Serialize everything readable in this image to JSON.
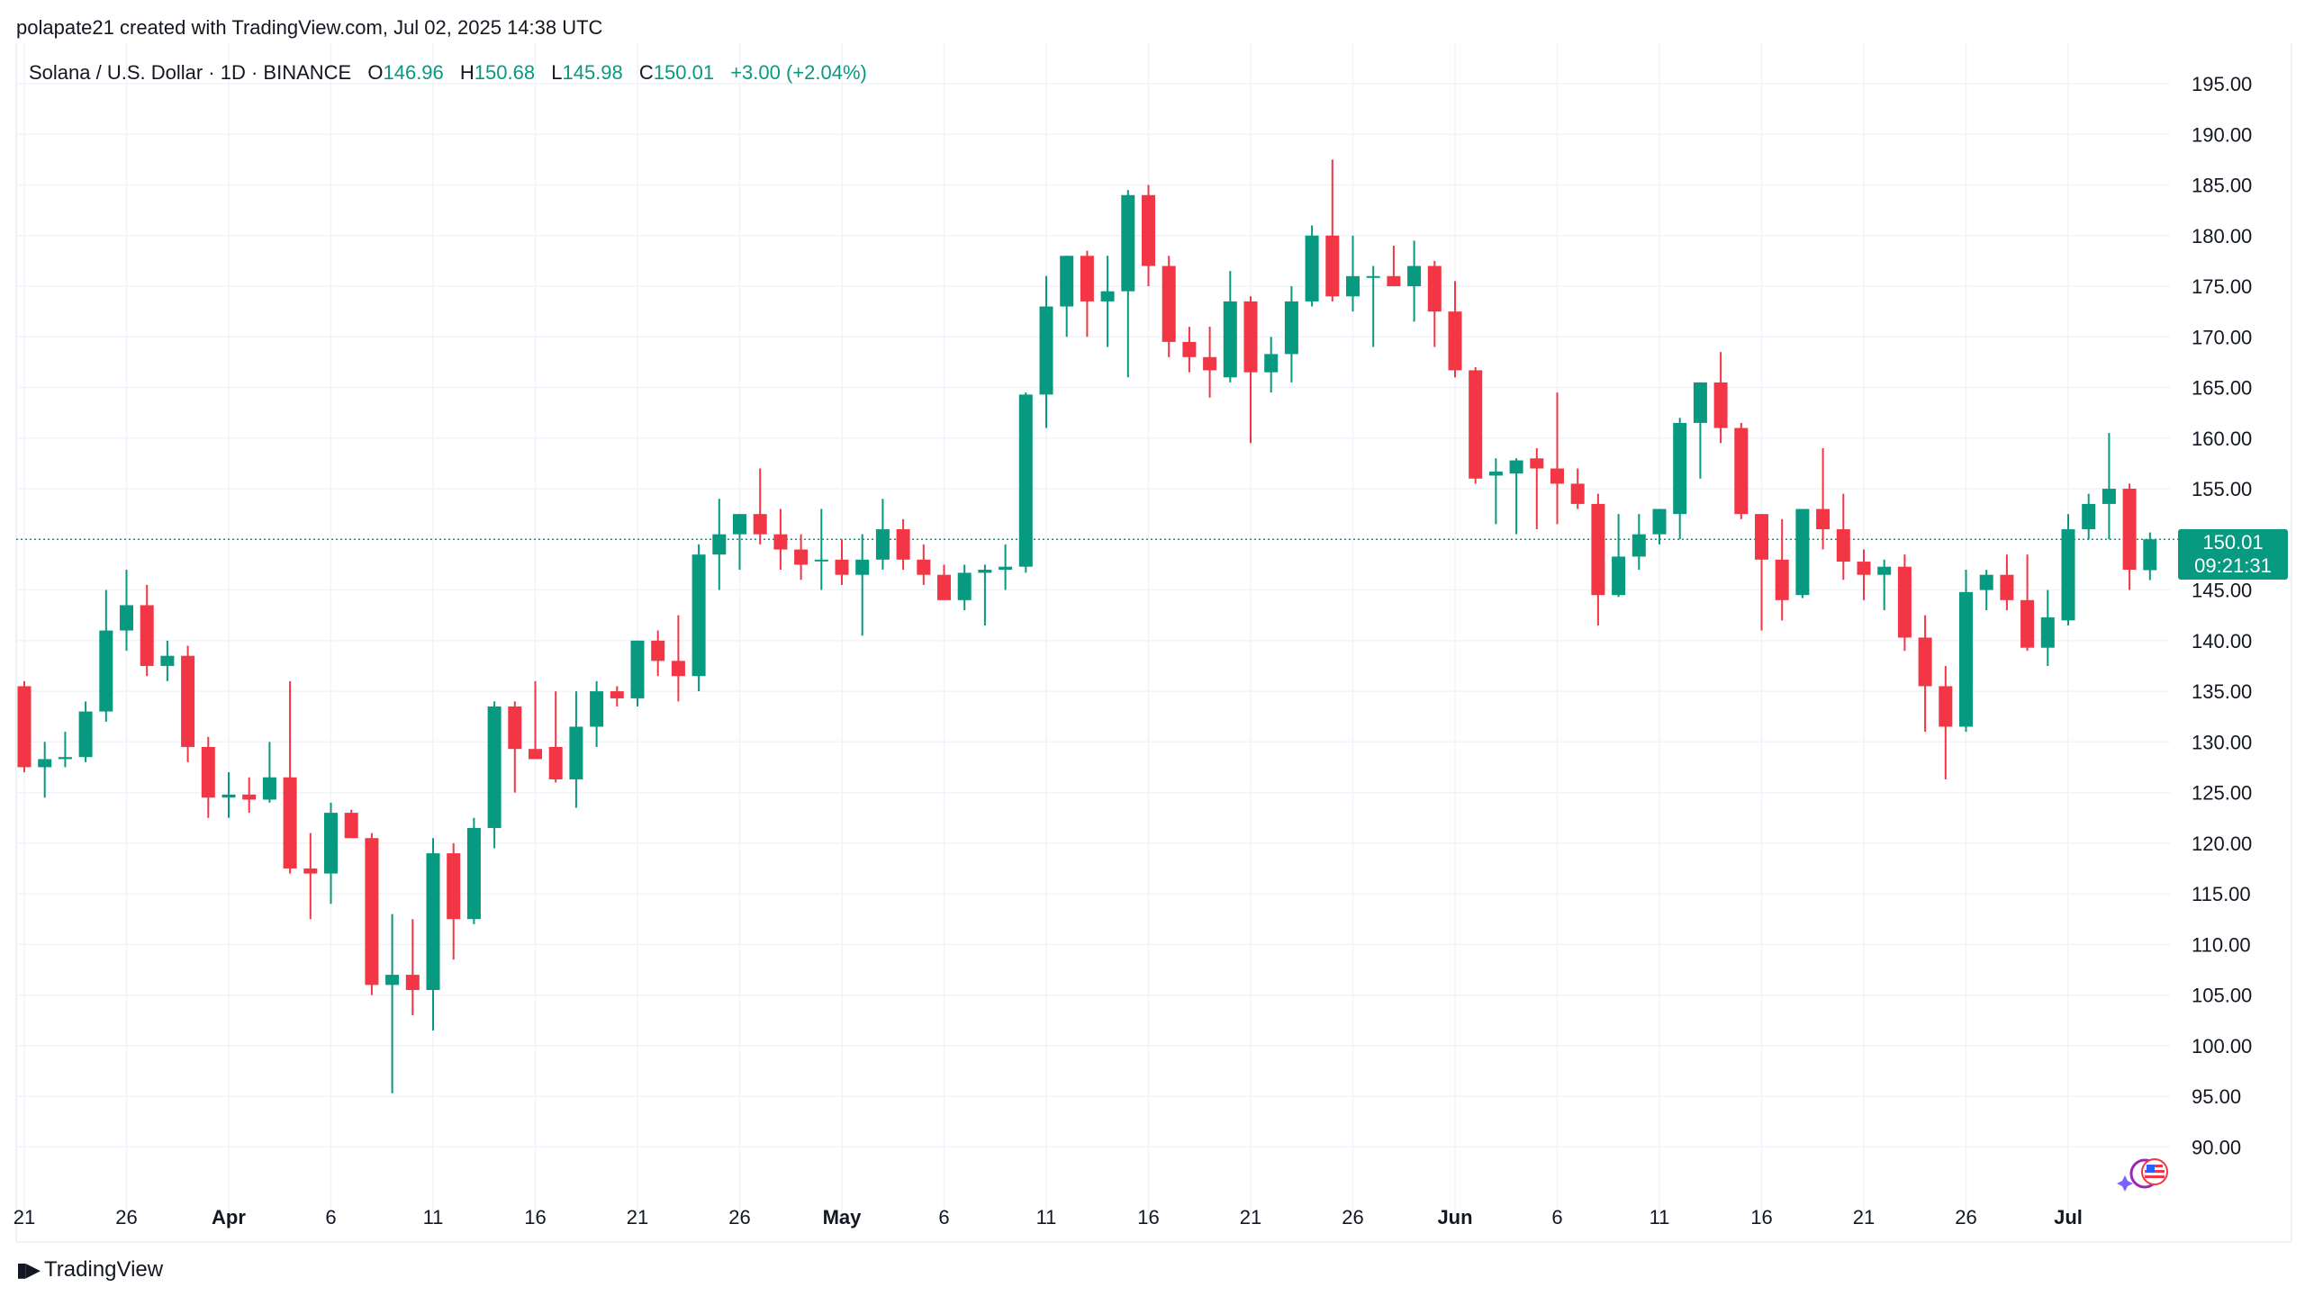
{
  "attribution": "polapate21 created with TradingView.com, Jul 02, 2025 14:38 UTC",
  "legend": {
    "symbol": "Solana / U.S. Dollar · 1D · BINANCE",
    "o_label": "O",
    "o_value": "146.96",
    "h_label": "H",
    "h_value": "150.68",
    "l_label": "L",
    "l_value": "145.98",
    "c_label": "C",
    "c_value": "150.01",
    "change": "+3.00 (+2.04%)"
  },
  "last_price": {
    "value": "150.01",
    "countdown": "09:21:31"
  },
  "logo_text": "TradingView",
  "colors": {
    "up": "#089981",
    "down": "#F23645",
    "grid": "#F0F3FA",
    "text": "#131722",
    "price_line": "#089981"
  },
  "chart_data": {
    "type": "candlestick",
    "title": "Solana / U.S. Dollar · 1D · BINANCE",
    "x_tick_labels": [
      "21",
      "26",
      "Apr",
      "6",
      "11",
      "16",
      "21",
      "26",
      "May",
      "6",
      "11",
      "16",
      "21",
      "26",
      "Jun",
      "6",
      "11",
      "16",
      "21",
      "26",
      "Jul"
    ],
    "x_tick_index": [
      0,
      5,
      10,
      15,
      20,
      25,
      30,
      35,
      40,
      45,
      50,
      55,
      60,
      65,
      70,
      75,
      80,
      85,
      90,
      95,
      100
    ],
    "y_tick_labels": [
      "195.00",
      "190.00",
      "185.00",
      "180.00",
      "175.00",
      "170.00",
      "165.00",
      "160.00",
      "155.00",
      "150.00",
      "145.00",
      "140.00",
      "135.00",
      "130.00",
      "125.00",
      "120.00",
      "115.00",
      "110.00",
      "105.00",
      "100.00",
      "95.00",
      "90.00"
    ],
    "ylim": [
      85.5,
      199
    ],
    "grid": true,
    "start_date": "2025-03-20",
    "candles": [
      {
        "o": 135.5,
        "h": 136,
        "l": 127,
        "c": 127.5
      },
      {
        "o": 127.5,
        "h": 130,
        "l": 124.5,
        "c": 128.3
      },
      {
        "o": 128.3,
        "h": 131,
        "l": 127.5,
        "c": 128.5
      },
      {
        "o": 128.5,
        "h": 134,
        "l": 128,
        "c": 133
      },
      {
        "o": 133,
        "h": 145,
        "l": 132,
        "c": 141
      },
      {
        "o": 141,
        "h": 147,
        "l": 139,
        "c": 143.5
      },
      {
        "o": 143.5,
        "h": 145.5,
        "l": 136.5,
        "c": 137.5
      },
      {
        "o": 137.5,
        "h": 140,
        "l": 136,
        "c": 138.5
      },
      {
        "o": 138.5,
        "h": 139.5,
        "l": 128,
        "c": 129.5
      },
      {
        "o": 129.5,
        "h": 130.5,
        "l": 122.5,
        "c": 124.5
      },
      {
        "o": 124.5,
        "h": 127,
        "l": 122.5,
        "c": 124.8
      },
      {
        "o": 124.8,
        "h": 126.5,
        "l": 123,
        "c": 124.3
      },
      {
        "o": 124.3,
        "h": 130,
        "l": 124,
        "c": 126.5
      },
      {
        "o": 126.5,
        "h": 136,
        "l": 117,
        "c": 117.5
      },
      {
        "o": 117.5,
        "h": 121,
        "l": 112.5,
        "c": 117
      },
      {
        "o": 117,
        "h": 124,
        "l": 114,
        "c": 123
      },
      {
        "o": 123,
        "h": 123.3,
        "l": 120.5,
        "c": 120.5
      },
      {
        "o": 120.5,
        "h": 121,
        "l": 105,
        "c": 106
      },
      {
        "o": 106,
        "h": 113,
        "l": 95.3,
        "c": 107
      },
      {
        "o": 107,
        "h": 112.5,
        "l": 103,
        "c": 105.5
      },
      {
        "o": 105.5,
        "h": 120.5,
        "l": 101.5,
        "c": 119
      },
      {
        "o": 119,
        "h": 120,
        "l": 108.5,
        "c": 112.5
      },
      {
        "o": 112.5,
        "h": 122.5,
        "l": 112,
        "c": 121.5
      },
      {
        "o": 121.5,
        "h": 134,
        "l": 119.5,
        "c": 133.5
      },
      {
        "o": 133.5,
        "h": 134,
        "l": 125,
        "c": 129.3
      },
      {
        "o": 129.3,
        "h": 136,
        "l": 128.5,
        "c": 128.3
      },
      {
        "o": 129.5,
        "h": 135,
        "l": 126,
        "c": 126.3
      },
      {
        "o": 126.3,
        "h": 135,
        "l": 123.5,
        "c": 131.5
      },
      {
        "o": 131.5,
        "h": 136,
        "l": 129.5,
        "c": 135
      },
      {
        "o": 135,
        "h": 135.5,
        "l": 133.5,
        "c": 134.3
      },
      {
        "o": 134.3,
        "h": 140,
        "l": 133.5,
        "c": 140
      },
      {
        "o": 140,
        "h": 141,
        "l": 136.5,
        "c": 138
      },
      {
        "o": 138,
        "h": 142.5,
        "l": 134,
        "c": 136.5
      },
      {
        "o": 136.5,
        "h": 149.5,
        "l": 135,
        "c": 148.5
      },
      {
        "o": 148.5,
        "h": 154,
        "l": 145,
        "c": 150.5
      },
      {
        "o": 150.5,
        "h": 152.5,
        "l": 147,
        "c": 152.5
      },
      {
        "o": 152.5,
        "h": 157,
        "l": 149.5,
        "c": 150.5
      },
      {
        "o": 150.5,
        "h": 153,
        "l": 147,
        "c": 149
      },
      {
        "o": 149,
        "h": 150.5,
        "l": 146,
        "c": 147.5
      },
      {
        "o": 148,
        "h": 153,
        "l": 145,
        "c": 148
      },
      {
        "o": 148,
        "h": 150,
        "l": 145.5,
        "c": 146.5
      },
      {
        "o": 146.5,
        "h": 150.5,
        "l": 140.5,
        "c": 148
      },
      {
        "o": 148,
        "h": 154,
        "l": 147,
        "c": 151
      },
      {
        "o": 151,
        "h": 152,
        "l": 147,
        "c": 148
      },
      {
        "o": 148,
        "h": 149.5,
        "l": 145.5,
        "c": 146.5
      },
      {
        "o": 146.5,
        "h": 147.5,
        "l": 144,
        "c": 144
      },
      {
        "o": 144,
        "h": 147.5,
        "l": 143,
        "c": 146.7
      },
      {
        "o": 146.7,
        "h": 147.5,
        "l": 141.5,
        "c": 147
      },
      {
        "o": 147,
        "h": 149.5,
        "l": 145,
        "c": 147.3
      },
      {
        "o": 147.3,
        "h": 164.5,
        "l": 146.7,
        "c": 164.3
      },
      {
        "o": 164.3,
        "h": 176,
        "l": 161,
        "c": 173
      },
      {
        "o": 173,
        "h": 178,
        "l": 170,
        "c": 178
      },
      {
        "o": 178,
        "h": 178.5,
        "l": 170,
        "c": 173.5
      },
      {
        "o": 173.5,
        "h": 178,
        "l": 169,
        "c": 174.5
      },
      {
        "o": 174.5,
        "h": 184.5,
        "l": 166,
        "c": 184
      },
      {
        "o": 184,
        "h": 185,
        "l": 175,
        "c": 177
      },
      {
        "o": 177,
        "h": 178,
        "l": 168,
        "c": 169.5
      },
      {
        "o": 169.5,
        "h": 171,
        "l": 166.5,
        "c": 168
      },
      {
        "o": 168,
        "h": 171,
        "l": 164,
        "c": 166.7
      },
      {
        "o": 166,
        "h": 176.5,
        "l": 165.5,
        "c": 173.5
      },
      {
        "o": 173.5,
        "h": 174,
        "l": 159.5,
        "c": 166.5
      },
      {
        "o": 166.5,
        "h": 170,
        "l": 164.5,
        "c": 168.3
      },
      {
        "o": 168.3,
        "h": 175,
        "l": 165.5,
        "c": 173.5
      },
      {
        "o": 173.5,
        "h": 181,
        "l": 173,
        "c": 180
      },
      {
        "o": 180,
        "h": 187.5,
        "l": 173.5,
        "c": 174
      },
      {
        "o": 174,
        "h": 180,
        "l": 172.5,
        "c": 176
      },
      {
        "o": 176,
        "h": 177,
        "l": 169,
        "c": 176
      },
      {
        "o": 176,
        "h": 179,
        "l": 175,
        "c": 175
      },
      {
        "o": 175,
        "h": 179.5,
        "l": 171.5,
        "c": 177
      },
      {
        "o": 177,
        "h": 177.5,
        "l": 169,
        "c": 172.5
      },
      {
        "o": 172.5,
        "h": 175.5,
        "l": 166,
        "c": 166.7
      },
      {
        "o": 166.7,
        "h": 167,
        "l": 155.5,
        "c": 156
      },
      {
        "o": 156.3,
        "h": 158,
        "l": 151.5,
        "c": 156.7
      },
      {
        "o": 156.5,
        "h": 158,
        "l": 150.5,
        "c": 157.8
      },
      {
        "o": 158,
        "h": 159,
        "l": 151,
        "c": 157
      },
      {
        "o": 157,
        "h": 164.5,
        "l": 151.5,
        "c": 155.5
      },
      {
        "o": 155.5,
        "h": 157,
        "l": 153,
        "c": 153.5
      },
      {
        "o": 153.5,
        "h": 154.5,
        "l": 141.5,
        "c": 144.5
      },
      {
        "o": 144.5,
        "h": 152.5,
        "l": 144.3,
        "c": 148.3
      },
      {
        "o": 148.3,
        "h": 152.5,
        "l": 147,
        "c": 150.5
      },
      {
        "o": 150.5,
        "h": 153,
        "l": 149.5,
        "c": 153
      },
      {
        "o": 152.5,
        "h": 162,
        "l": 150,
        "c": 161.5
      },
      {
        "o": 161.5,
        "h": 165.5,
        "l": 156,
        "c": 165.5
      },
      {
        "o": 165.5,
        "h": 168.5,
        "l": 159.5,
        "c": 161
      },
      {
        "o": 161,
        "h": 161.5,
        "l": 152,
        "c": 152.5
      },
      {
        "o": 152.5,
        "h": 152.5,
        "l": 141,
        "c": 148
      },
      {
        "o": 148,
        "h": 152,
        "l": 142,
        "c": 144
      },
      {
        "o": 144.5,
        "h": 153,
        "l": 144.2,
        "c": 153
      },
      {
        "o": 153,
        "h": 159,
        "l": 149,
        "c": 151
      },
      {
        "o": 151,
        "h": 154.5,
        "l": 146,
        "c": 147.8
      },
      {
        "o": 147.8,
        "h": 149,
        "l": 144,
        "c": 146.5
      },
      {
        "o": 146.5,
        "h": 148,
        "l": 143,
        "c": 147.3
      },
      {
        "o": 147.3,
        "h": 148.5,
        "l": 139,
        "c": 140.3
      },
      {
        "o": 140.3,
        "h": 142.5,
        "l": 131,
        "c": 135.5
      },
      {
        "o": 135.5,
        "h": 137.5,
        "l": 126.3,
        "c": 131.5
      },
      {
        "o": 131.5,
        "h": 147,
        "l": 131,
        "c": 144.8
      },
      {
        "o": 145,
        "h": 147,
        "l": 143,
        "c": 146.5
      },
      {
        "o": 146.5,
        "h": 148.5,
        "l": 143,
        "c": 144
      },
      {
        "o": 144,
        "h": 148.5,
        "l": 139,
        "c": 139.3
      },
      {
        "o": 139.3,
        "h": 145,
        "l": 137.5,
        "c": 142.3
      },
      {
        "o": 142,
        "h": 152.5,
        "l": 141.5,
        "c": 151
      },
      {
        "o": 151,
        "h": 154.5,
        "l": 150,
        "c": 153.5
      },
      {
        "o": 153.5,
        "h": 160.5,
        "l": 150,
        "c": 155
      },
      {
        "o": 155,
        "h": 155.5,
        "l": 145,
        "c": 147
      },
      {
        "o": 146.96,
        "h": 150.68,
        "l": 145.98,
        "c": 150.01
      }
    ]
  }
}
